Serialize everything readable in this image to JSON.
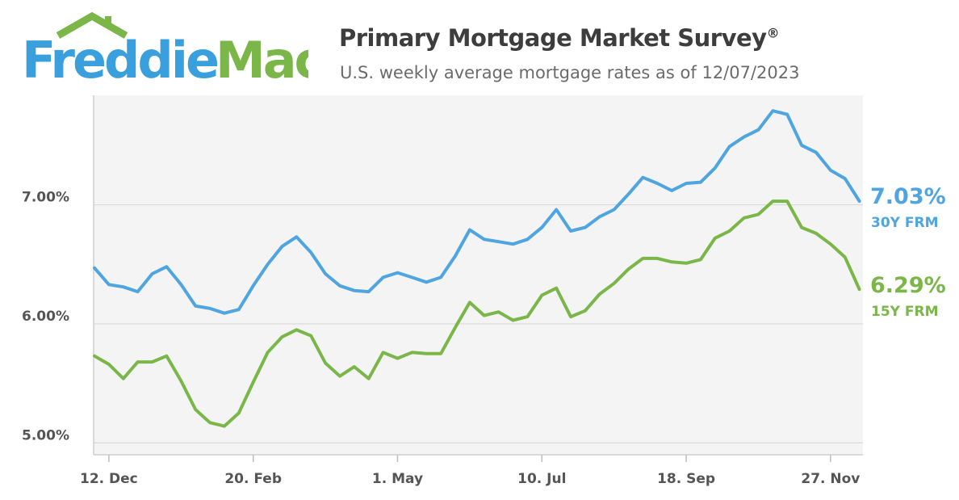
{
  "header": {
    "logo_text_1": "Freddie",
    "logo_text_2": "Mac",
    "title": "Primary Mortgage Market Survey",
    "title_mark": "®",
    "subtitle": "U.S. weekly average mortgage rates as of 12/07/2023"
  },
  "colors": {
    "frm30": "#4ea5e0",
    "frm15": "#7ab648",
    "logo_blue": "#3aa0dd",
    "logo_green": "#7ab648",
    "plot_bg": "#f4f4f4"
  },
  "chart_data": {
    "type": "line",
    "title": "Primary Mortgage Market Survey",
    "subtitle": "U.S. weekly average mortgage rates as of 12/07/2023",
    "x_tick_labels": [
      "12. Dec",
      "20. Feb",
      "1. May",
      "10. Jul",
      "18. Sep",
      "27. Nov"
    ],
    "y_tick_labels": [
      "5.00%",
      "6.00%",
      "7.00%"
    ],
    "ylim": [
      4.9,
      7.92
    ],
    "grid": true,
    "series": [
      {
        "name": "30Y FRM",
        "end_label": "7.03%",
        "values": [
          6.47,
          6.33,
          6.31,
          6.27,
          6.42,
          6.48,
          6.33,
          6.15,
          6.13,
          6.09,
          6.12,
          6.32,
          6.5,
          6.65,
          6.73,
          6.6,
          6.42,
          6.32,
          6.28,
          6.27,
          6.39,
          6.43,
          6.39,
          6.35,
          6.39,
          6.57,
          6.79,
          6.71,
          6.69,
          6.67,
          6.71,
          6.81,
          6.96,
          6.78,
          6.81,
          6.9,
          6.96,
          7.09,
          7.23,
          7.18,
          7.12,
          7.18,
          7.19,
          7.31,
          7.49,
          7.57,
          7.63,
          7.79,
          7.76,
          7.5,
          7.44,
          7.29,
          7.22,
          7.03
        ]
      },
      {
        "name": "15Y FRM",
        "end_label": "6.29%",
        "values": [
          5.73,
          5.66,
          5.54,
          5.68,
          5.68,
          5.73,
          5.52,
          5.28,
          5.17,
          5.14,
          5.25,
          5.51,
          5.76,
          5.89,
          5.95,
          5.9,
          5.67,
          5.56,
          5.64,
          5.54,
          5.76,
          5.71,
          5.76,
          5.75,
          5.75,
          5.97,
          6.18,
          6.07,
          6.1,
          6.03,
          6.06,
          6.24,
          6.3,
          6.06,
          6.11,
          6.25,
          6.34,
          6.46,
          6.55,
          6.55,
          6.52,
          6.51,
          6.54,
          6.72,
          6.78,
          6.89,
          6.92,
          7.03,
          7.03,
          6.81,
          6.76,
          6.67,
          6.56,
          6.29
        ]
      }
    ]
  }
}
